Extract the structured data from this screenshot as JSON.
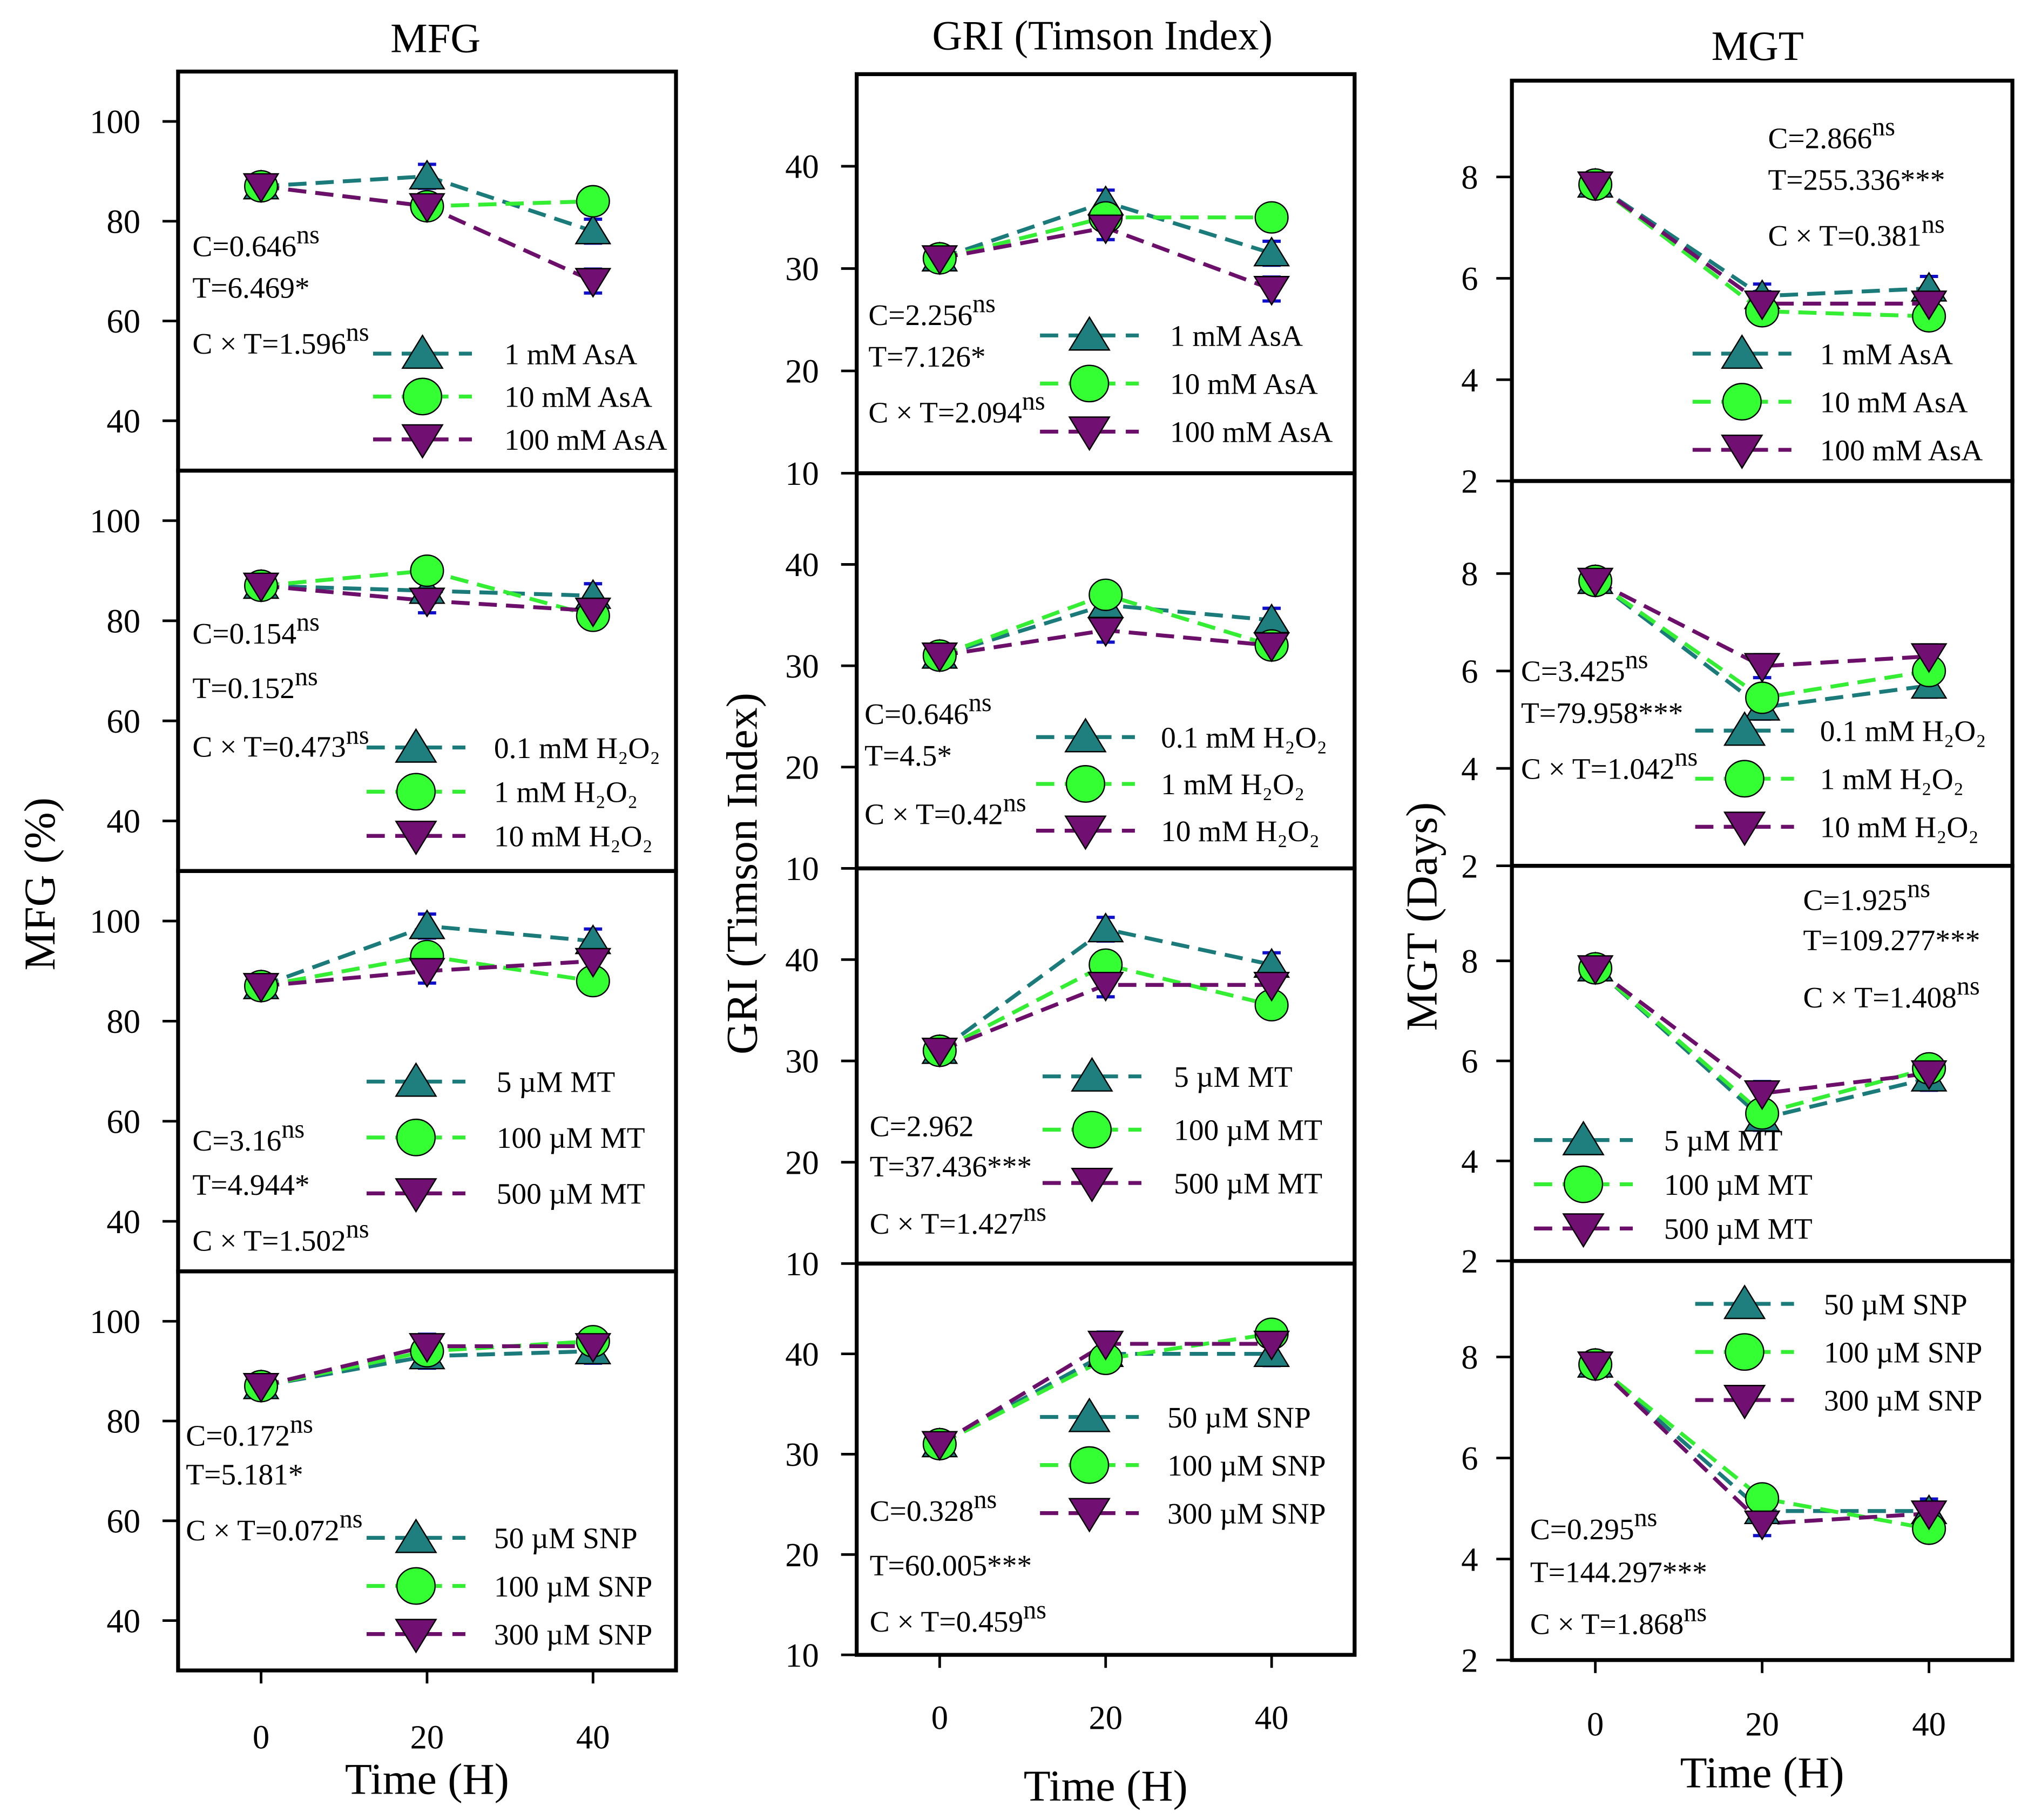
{
  "chart_data": [
    {
      "type": "line",
      "title": "MFG",
      "ylabel": "MFG (%)",
      "xlabel": "Time (H)",
      "x": [
        0,
        20,
        40
      ],
      "xticks": [
        "0",
        "20",
        "40"
      ],
      "xlim": [
        -10,
        50
      ],
      "ylim": [
        30,
        110
      ],
      "yticks": [
        "40",
        "60",
        "80",
        "100"
      ],
      "panels": [
        {
          "series": [
            {
              "name": "1 mM AsA",
              "values": [
                87,
                89,
                78
              ]
            },
            {
              "name": "10 mM AsA",
              "values": [
                87,
                83,
                84
              ]
            },
            {
              "name": "100 mM AsA",
              "values": [
                87,
                83,
                68
              ]
            }
          ],
          "stats": [
            {
              "text": "C=0.646",
              "sup": "ns"
            },
            {
              "text": "T=6.469*",
              "sup": ""
            },
            {
              "text": "C × T=1.596",
              "sup": "ns"
            }
          ]
        },
        {
          "series": [
            {
              "name": "0.1 mM H₂O₂",
              "values": [
                87,
                86,
                85
              ]
            },
            {
              "name": "1 mM H₂O₂",
              "values": [
                87,
                90,
                81
              ]
            },
            {
              "name": "10 mM H₂O₂",
              "values": [
                87,
                84,
                82
              ]
            }
          ],
          "stats": [
            {
              "text": "C=0.154",
              "sup": "ns"
            },
            {
              "text": "T=0.152",
              "sup": "ns"
            },
            {
              "text": "C × T=0.473",
              "sup": "ns"
            }
          ]
        },
        {
          "series": [
            {
              "name": "5 µM MT",
              "values": [
                87,
                99,
                96
              ]
            },
            {
              "name": "100 µM  MT",
              "values": [
                87,
                93,
                88
              ]
            },
            {
              "name": "500 µM MT",
              "values": [
                87,
                90,
                92
              ]
            }
          ],
          "stats": [
            {
              "text": "C=3.16",
              "sup": "ns"
            },
            {
              "text": "T=4.944*",
              "sup": ""
            },
            {
              "text": "C × T=1.502",
              "sup": "ns"
            }
          ]
        },
        {
          "series": [
            {
              "name": "50 µM SNP",
              "values": [
                87,
                93,
                94
              ]
            },
            {
              "name": "100 µM SNP",
              "values": [
                87,
                94,
                96
              ]
            },
            {
              "name": "300 µM SNP",
              "values": [
                87,
                95,
                95
              ]
            }
          ],
          "stats": [
            {
              "text": "C=0.172",
              "sup": "ns"
            },
            {
              "text": "T=5.181*",
              "sup": ""
            },
            {
              "text": "C × T=0.072",
              "sup": "ns"
            }
          ]
        }
      ]
    },
    {
      "type": "line",
      "title": "GRI (Timson Index)",
      "ylabel": "GRI (Timson Index)",
      "xlabel": "Time (H)",
      "x": [
        0,
        20,
        40
      ],
      "xticks": [
        "0",
        "20",
        "40"
      ],
      "xlim": [
        -10,
        50
      ],
      "ylim": [
        10,
        49
      ],
      "yticks": [
        "10",
        "20",
        "30",
        "40"
      ],
      "panels": [
        {
          "series": [
            {
              "name": "1 mM AsA",
              "values": [
                31,
                36.5,
                31.5
              ]
            },
            {
              "name": "10 mM AsA",
              "values": [
                31,
                35,
                35
              ]
            },
            {
              "name": "100 mM AsA",
              "values": [
                31,
                34,
                28
              ]
            }
          ],
          "stats": [
            {
              "text": "C=2.256",
              "sup": "ns"
            },
            {
              "text": "T=7.126*",
              "sup": ""
            },
            {
              "text": "C × T=2.094",
              "sup": "ns"
            }
          ]
        },
        {
          "series": [
            {
              "name": "0.1 mM H₂O₂",
              "values": [
                31,
                36,
                34.5
              ]
            },
            {
              "name": "1 mM H₂O₂",
              "values": [
                31,
                37,
                32
              ]
            },
            {
              "name": "10 mM H₂O₂",
              "values": [
                31,
                33.5,
                32
              ]
            }
          ],
          "stats": [
            {
              "text": "C=0.646",
              "sup": "ns"
            },
            {
              "text": "T=4.5*",
              "sup": ""
            },
            {
              "text": "C × T=0.42",
              "sup": "ns"
            }
          ]
        },
        {
          "series": [
            {
              "name": "5 µM MT",
              "values": [
                31,
                43,
                39.5
              ]
            },
            {
              "name": "100 µM MT",
              "values": [
                31,
                39.5,
                35.5
              ]
            },
            {
              "name": "500 µM  MT",
              "values": [
                31,
                37.5,
                37.5
              ]
            }
          ],
          "stats": [
            {
              "text": "C=2.962",
              "sup": ""
            },
            {
              "text": "T=37.436***",
              "sup": ""
            },
            {
              "text": "C × T=1.427",
              "sup": "ns"
            }
          ]
        },
        {
          "series": [
            {
              "name": "50 µM SNP",
              "values": [
                31,
                40,
                40
              ]
            },
            {
              "name": "100 µM SNP",
              "values": [
                31,
                39.5,
                42
              ]
            },
            {
              "name": "300 µM SNP",
              "values": [
                31,
                41,
                41
              ]
            }
          ],
          "stats": [
            {
              "text": "C=0.328",
              "sup": "ns"
            },
            {
              "text": "T=60.005***",
              "sup": ""
            },
            {
              "text": "C × T=0.459",
              "sup": "ns"
            }
          ]
        }
      ]
    },
    {
      "type": "line",
      "title": "MGT",
      "ylabel": "MGT (Days)",
      "xlabel": "Time (H)",
      "x": [
        0,
        20,
        40
      ],
      "xticks": [
        "0",
        "20",
        "40"
      ],
      "xlim": [
        -10,
        50
      ],
      "ylim": [
        2,
        9.9
      ],
      "yticks": [
        "2",
        "4",
        "6",
        "8"
      ],
      "panels": [
        {
          "series": [
            {
              "name": "1 mM AsA",
              "values": [
                7.85,
                5.65,
                5.8
              ]
            },
            {
              "name": "10 mM AsA",
              "values": [
                7.85,
                5.35,
                5.25
              ]
            },
            {
              "name": "100 mM AsA",
              "values": [
                7.85,
                5.5,
                5.5
              ]
            }
          ],
          "stats": [
            {
              "text": "C=2.866",
              "sup": "ns"
            },
            {
              "text": "T=255.336***",
              "sup": ""
            },
            {
              "text": "C × T=0.381",
              "sup": "ns"
            }
          ]
        },
        {
          "series": [
            {
              "name": "0.1 mM H₂O₂",
              "values": [
                7.85,
                5.25,
                5.7
              ]
            },
            {
              "name": "1 mM H₂O₂",
              "values": [
                7.85,
                5.45,
                6.0
              ]
            },
            {
              "name": "10 mM H₂O₂",
              "values": [
                7.85,
                6.1,
                6.3
              ]
            }
          ],
          "stats": [
            {
              "text": "C=3.425",
              "sup": "ns"
            },
            {
              "text": "T=79.958***",
              "sup": ""
            },
            {
              "text": "C × T=1.042",
              "sup": "ns"
            }
          ]
        },
        {
          "series": [
            {
              "name": "5 µM MT",
              "values": [
                7.85,
                4.85,
                5.65
              ]
            },
            {
              "name": "100 µM  MT",
              "values": [
                7.85,
                4.95,
                5.85
              ]
            },
            {
              "name": "500 µM  MT",
              "values": [
                7.85,
                5.35,
                5.75
              ]
            }
          ],
          "stats": [
            {
              "text": "C=1.925",
              "sup": "ns"
            },
            {
              "text": "T=109.277***",
              "sup": ""
            },
            {
              "text": "C × T=1.408",
              "sup": "ns"
            }
          ]
        },
        {
          "series": [
            {
              "name": "50 µM SNP",
              "values": [
                7.85,
                4.95,
                4.95
              ]
            },
            {
              "name": "100 µM SNP",
              "values": [
                7.85,
                5.2,
                4.6
              ]
            },
            {
              "name": "300 µM SNP",
              "values": [
                7.85,
                4.7,
                4.9
              ]
            }
          ],
          "stats": [
            {
              "text": "C=0.295",
              "sup": "ns"
            },
            {
              "text": "T=144.297***",
              "sup": ""
            },
            {
              "text": "C × T=1.868",
              "sup": "ns"
            }
          ]
        }
      ]
    }
  ],
  "colors": {
    "series1": "#1b7a7a",
    "series2": "#33ee33",
    "series3": "#6b0f6b",
    "errorbar": "#1010cc"
  }
}
